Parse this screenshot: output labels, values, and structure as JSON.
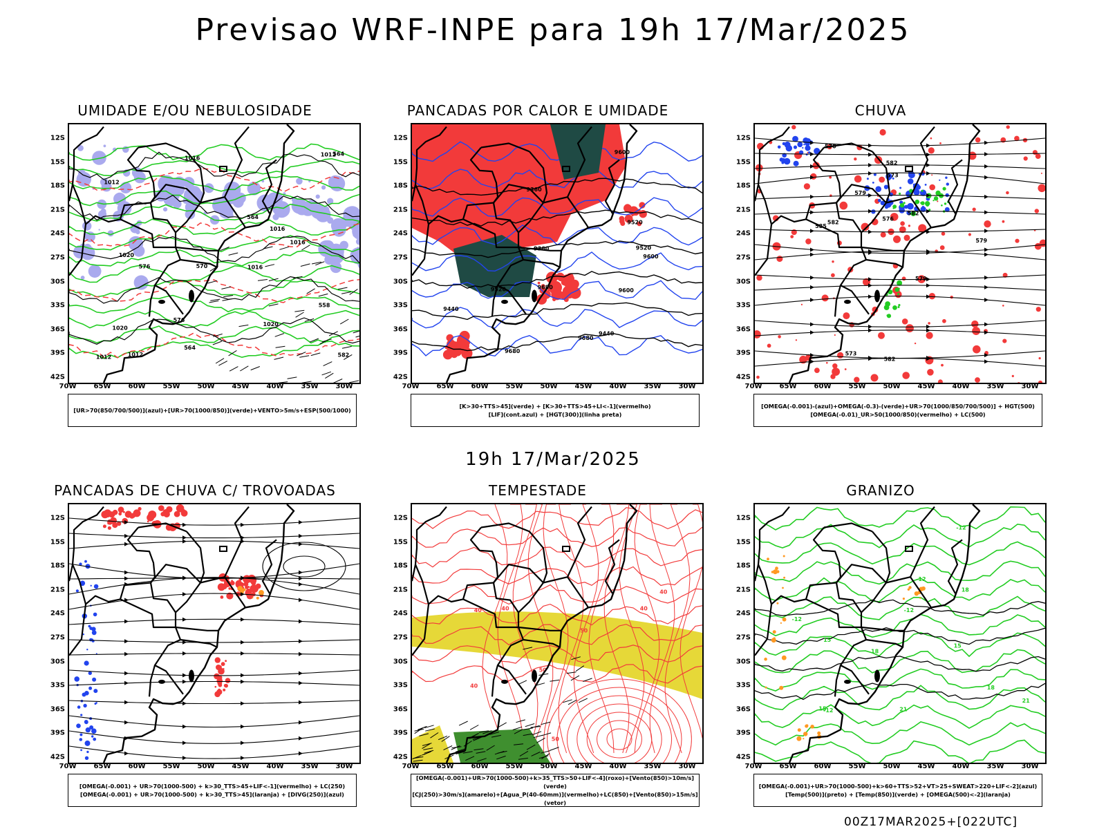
{
  "header": {
    "title": "Previsao WRF-INPE  para 19h 17/Mar/2025"
  },
  "mid_title": "19h 17/Mar/2025",
  "footer": "00Z17MAR2025+[022UTC]",
  "axes": {
    "lat_ticks": [
      "12S",
      "15S",
      "18S",
      "21S",
      "24S",
      "27S",
      "30S",
      "33S",
      "36S",
      "39S",
      "42S"
    ],
    "lon_ticks": [
      "70W",
      "65W",
      "60W",
      "55W",
      "50W",
      "45W",
      "40W",
      "35W",
      "30W"
    ]
  },
  "colors": {
    "red": "#f23a3a",
    "green": "#22cc22",
    "blue": "#2244ee",
    "lavender": "#aaaaee",
    "dark_teal": "#1f4a44",
    "yellow": "#e6d838",
    "orange": "#ff9922",
    "purple": "#aa33cc",
    "black": "#000000"
  },
  "panels": [
    {
      "id": "umidade",
      "title": "UMIDADE E/OU NEBULOSIDADE",
      "legend": [
        "[UR>70(850/700/500)](azul)+[UR>70(1000/850)](verde)+VENTO>5m/s+ESP(500/1000)"
      ],
      "contour_labels": [
        "1012",
        "1012",
        "1012",
        "1012",
        "1016",
        "1016",
        "1016",
        "1016",
        "1020",
        "1020",
        "1020",
        "576",
        "576",
        "570",
        "564",
        "564",
        "564",
        "558",
        "582"
      ]
    },
    {
      "id": "pancadas-calor",
      "title": "PANCADAS POR CALOR E UMIDADE",
      "legend": [
        "[K>30+TTS>45](verde) + [K>30+TTS>45+LI<-1](vermelho)",
        "[LIF](cont.azul) + [HGT(300)](linha preta)"
      ],
      "contour_labels": [
        "9680",
        "9680",
        "9680",
        "9600",
        "9600",
        "9520",
        "9520",
        "9520",
        "9440",
        "9440",
        "9360",
        "9360",
        "9600"
      ]
    },
    {
      "id": "chuva",
      "title": "CHUVA",
      "legend": [
        "[OMEGA(-0.001)-(azul)+OMEGA(-0.3)-(verde)+UR>70(1000/850/700/500)] + HGT(500)",
        "[OMEGA(-0.01)_UR>50(1000/850)(vermelho) + LC(500)"
      ],
      "contour_labels": [
        "585",
        "582",
        "582",
        "582",
        "579",
        "579",
        "579",
        "576",
        "573",
        "573",
        "570",
        "582"
      ]
    },
    {
      "id": "pancadas-trovoadas",
      "title": "PANCADAS DE CHUVA C/ TROVOADAS",
      "legend": [
        "[OMEGA(-0.001) + UR>70(1000-500) + k>30_TTS>45+LIF<-1](vermelho) + LC(250)",
        "[OMEGA(-0.001) + UR>70(1000-500) + k>30_TTS>45](laranja) + [DIVG(250)](azul)"
      ],
      "contour_labels": []
    },
    {
      "id": "tempestade",
      "title": "TEMPESTADE",
      "legend": [
        "[OMEGA(-0.001)+UR>70(1000-500)+k>35_TTS>50+LIF<-4](roxo)+[Vento(850)>10m/s](verde)",
        "[CJ(250)>30m/s](amarelo)+[Agua_P(40-60mm)](vermelho)+LC(850)+[Vento(850)>15m/s](vetor)"
      ],
      "contour_labels": [
        "50",
        "50",
        "40",
        "40",
        "40",
        "40",
        "50",
        "40"
      ]
    },
    {
      "id": "granizo",
      "title": "GRANIZO",
      "legend": [
        "[OMEGA(-0.001)+UR>70(1000-500)+k>60+TTS>52+VT>25+SWEAT>220+LIF<-2](azul)",
        "[Temp(500)](preto) + [Temp(850)](verde) + [OMEGA(500)<-2](laranja)"
      ],
      "contour_labels": [
        "-12",
        "-12",
        "-12",
        "-12",
        "-12",
        "15",
        "15",
        "15",
        "18",
        "18",
        "18",
        "21",
        "21"
      ]
    }
  ]
}
